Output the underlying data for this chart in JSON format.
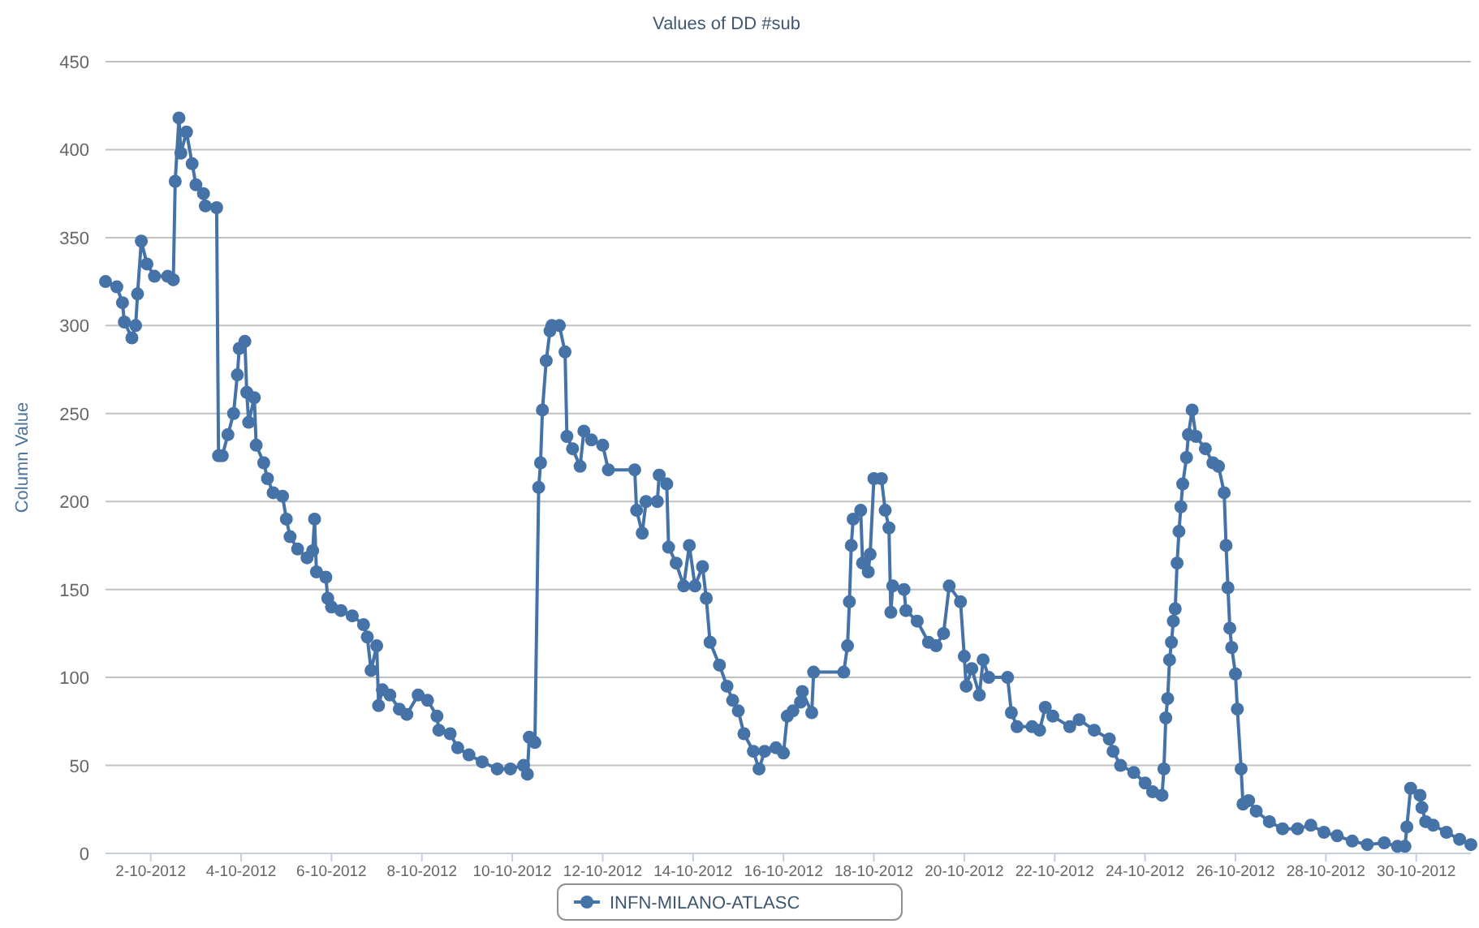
{
  "chart_data": {
    "type": "line",
    "title": "Values of DD #sub",
    "ylabel": "Column Value",
    "x": [
      "2012-10-01T00:00",
      "2012-10-01T06:00",
      "2012-10-01T09:00",
      "2012-10-01T10:00",
      "2012-10-01T14:00",
      "2012-10-01T16:00",
      "2012-10-01T17:00",
      "2012-10-01T19:00",
      "2012-10-01T22:00",
      "2012-10-02T02:00",
      "2012-10-02T09:00",
      "2012-10-02T12:00",
      "2012-10-02T13:00",
      "2012-10-02T15:00",
      "2012-10-02T16:00",
      "2012-10-02T19:00",
      "2012-10-02T22:00",
      "2012-10-03T00:00",
      "2012-10-03T04:00",
      "2012-10-03T05:00",
      "2012-10-03T11:00",
      "2012-10-03T12:00",
      "2012-10-03T14:00",
      "2012-10-03T17:00",
      "2012-10-03T20:00",
      "2012-10-03T22:00",
      "2012-10-03T23:00",
      "2012-10-04T02:00",
      "2012-10-04T03:00",
      "2012-10-04T04:00",
      "2012-10-04T07:00",
      "2012-10-04T08:00",
      "2012-10-04T12:00",
      "2012-10-04T14:00",
      "2012-10-04T17:00",
      "2012-10-04T22:00",
      "2012-10-05T00:00",
      "2012-10-05T02:00",
      "2012-10-05T06:00",
      "2012-10-05T11:00",
      "2012-10-05T14:00",
      "2012-10-05T15:00",
      "2012-10-05T16:00",
      "2012-10-05T21:00",
      "2012-10-05T22:00",
      "2012-10-06T00:00",
      "2012-10-06T05:00",
      "2012-10-06T11:00",
      "2012-10-06T17:00",
      "2012-10-06T19:00",
      "2012-10-06T21:00",
      "2012-10-07T00:00",
      "2012-10-07T01:00",
      "2012-10-07T03:00",
      "2012-10-07T07:00",
      "2012-10-07T12:00",
      "2012-10-07T16:00",
      "2012-10-07T22:00",
      "2012-10-08T03:00",
      "2012-10-08T08:00",
      "2012-10-08T09:00",
      "2012-10-08T15:00",
      "2012-10-08T19:00",
      "2012-10-09T01:00",
      "2012-10-09T08:00",
      "2012-10-09T16:00",
      "2012-10-09T23:00",
      "2012-10-10T06:00",
      "2012-10-10T08:00",
      "2012-10-10T09:00",
      "2012-10-10T12:00",
      "2012-10-10T14:00",
      "2012-10-10T15:00",
      "2012-10-10T16:00",
      "2012-10-10T18:00",
      "2012-10-10T20:00",
      "2012-10-10T21:00",
      "2012-10-11T01:00",
      "2012-10-11T04:00",
      "2012-10-11T05:00",
      "2012-10-11T08:00",
      "2012-10-11T12:00",
      "2012-10-11T14:00",
      "2012-10-11T18:00",
      "2012-10-12T00:00",
      "2012-10-12T03:00",
      "2012-10-12T17:00",
      "2012-10-12T18:00",
      "2012-10-12T21:00",
      "2012-10-12T23:00",
      "2012-10-13T05:00",
      "2012-10-13T06:00",
      "2012-10-13T10:00",
      "2012-10-13T11:00",
      "2012-10-13T15:00",
      "2012-10-13T19:00",
      "2012-10-13T22:00",
      "2012-10-14T01:00",
      "2012-10-14T05:00",
      "2012-10-14T07:00",
      "2012-10-14T09:00",
      "2012-10-14T14:00",
      "2012-10-14T18:00",
      "2012-10-14T21:00",
      "2012-10-15T00:00",
      "2012-10-15T03:00",
      "2012-10-15T08:00",
      "2012-10-15T11:00",
      "2012-10-15T14:00",
      "2012-10-15T20:00",
      "2012-10-16T00:00",
      "2012-10-16T02:00",
      "2012-10-16T05:00",
      "2012-10-16T09:00",
      "2012-10-16T10:00",
      "2012-10-16T15:00",
      "2012-10-16T16:00",
      "2012-10-17T08:00",
      "2012-10-17T10:00",
      "2012-10-17T11:00",
      "2012-10-17T12:00",
      "2012-10-17T13:00",
      "2012-10-17T17:00",
      "2012-10-17T18:00",
      "2012-10-17T21:00",
      "2012-10-17T22:00",
      "2012-10-18T00:00",
      "2012-10-18T04:00",
      "2012-10-18T06:00",
      "2012-10-18T08:00",
      "2012-10-18T09:00",
      "2012-10-18T10:00",
      "2012-10-18T16:00",
      "2012-10-18T17:00",
      "2012-10-18T23:00",
      "2012-10-19T05:00",
      "2012-10-19T09:00",
      "2012-10-19T13:00",
      "2012-10-19T16:00",
      "2012-10-19T22:00",
      "2012-10-20T00:00",
      "2012-10-20T01:00",
      "2012-10-20T04:00",
      "2012-10-20T08:00",
      "2012-10-20T10:00",
      "2012-10-20T13:00",
      "2012-10-20T23:00",
      "2012-10-21T01:00",
      "2012-10-21T04:00",
      "2012-10-21T12:00",
      "2012-10-21T16:00",
      "2012-10-21T19:00",
      "2012-10-21T23:00",
      "2012-10-22T08:00",
      "2012-10-22T13:00",
      "2012-10-22T21:00",
      "2012-10-23T05:00",
      "2012-10-23T07:00",
      "2012-10-23T11:00",
      "2012-10-23T18:00",
      "2012-10-24T00:00",
      "2012-10-24T04:00",
      "2012-10-24T09:00",
      "2012-10-24T10:00",
      "2012-10-24T11:00",
      "2012-10-24T12:00",
      "2012-10-24T13:00",
      "2012-10-24T14:00",
      "2012-10-24T15:00",
      "2012-10-24T16:00",
      "2012-10-24T17:00",
      "2012-10-24T18:00",
      "2012-10-24T19:00",
      "2012-10-24T20:00",
      "2012-10-24T22:00",
      "2012-10-24T23:00",
      "2012-10-25T01:00",
      "2012-10-25T03:00",
      "2012-10-25T08:00",
      "2012-10-25T12:00",
      "2012-10-25T15:00",
      "2012-10-25T18:00",
      "2012-10-25T19:00",
      "2012-10-25T20:00",
      "2012-10-25T21:00",
      "2012-10-25T22:00",
      "2012-10-26T00:00",
      "2012-10-26T01:00",
      "2012-10-26T03:00",
      "2012-10-26T04:00",
      "2012-10-26T07:00",
      "2012-10-26T11:00",
      "2012-10-26T18:00",
      "2012-10-27T01:00",
      "2012-10-27T09:00",
      "2012-10-27T16:00",
      "2012-10-27T23:00",
      "2012-10-28T06:00",
      "2012-10-28T14:00",
      "2012-10-28T22:00",
      "2012-10-29T07:00",
      "2012-10-29T14:00",
      "2012-10-29T18:00",
      "2012-10-29T19:00",
      "2012-10-29T21:00",
      "2012-10-30T02:00",
      "2012-10-30T03:00",
      "2012-10-30T05:00",
      "2012-10-30T09:00",
      "2012-10-30T16:00",
      "2012-10-30T23:00",
      "2012-10-31T05:00"
    ],
    "series": [
      {
        "name": "INFN-MILANO-ATLASC",
        "color": "#4572a7",
        "values": [
          325,
          322,
          313,
          302,
          293,
          300,
          318,
          348,
          335,
          328,
          328,
          326,
          382,
          418,
          398,
          410,
          392,
          380,
          375,
          368,
          367,
          226,
          226,
          238,
          250,
          272,
          287,
          291,
          262,
          245,
          259,
          232,
          222,
          213,
          205,
          203,
          190,
          180,
          173,
          168,
          172,
          190,
          160,
          157,
          145,
          140,
          138,
          135,
          130,
          123,
          104,
          118,
          84,
          93,
          90,
          82,
          79,
          90,
          87,
          78,
          70,
          68,
          60,
          56,
          52,
          48,
          48,
          50,
          45,
          66,
          63,
          208,
          222,
          252,
          280,
          297,
          300,
          300,
          285,
          237,
          230,
          220,
          240,
          235,
          232,
          218,
          218,
          195,
          182,
          200,
          200,
          215,
          210,
          174,
          165,
          152,
          175,
          152,
          163,
          145,
          120,
          107,
          95,
          87,
          81,
          68,
          58,
          48,
          58,
          60,
          57,
          78,
          81,
          86,
          92,
          80,
          103,
          103,
          118,
          143,
          175,
          190,
          195,
          165,
          160,
          170,
          213,
          213,
          195,
          185,
          137,
          152,
          150,
          138,
          132,
          120,
          118,
          125,
          152,
          143,
          112,
          95,
          105,
          90,
          110,
          100,
          100,
          80,
          72,
          72,
          70,
          83,
          78,
          72,
          76,
          70,
          65,
          58,
          50,
          46,
          40,
          35,
          33,
          48,
          77,
          88,
          110,
          120,
          132,
          139,
          165,
          183,
          197,
          210,
          225,
          238,
          252,
          237,
          230,
          222,
          220,
          205,
          175,
          151,
          128,
          117,
          102,
          82,
          48,
          28,
          30,
          24,
          18,
          14,
          14,
          16,
          12,
          10,
          7,
          5,
          6,
          4,
          4,
          15,
          37,
          33,
          26,
          18,
          16,
          12,
          8,
          5
        ]
      }
    ],
    "xlim": [
      "2012-10-01T00:00",
      "2012-10-31T05:00"
    ],
    "xticks": [
      {
        "value": "2012-10-02",
        "label": "2-10-2012"
      },
      {
        "value": "2012-10-04",
        "label": "4-10-2012"
      },
      {
        "value": "2012-10-06",
        "label": "6-10-2012"
      },
      {
        "value": "2012-10-08",
        "label": "8-10-2012"
      },
      {
        "value": "2012-10-10",
        "label": "10-10-2012"
      },
      {
        "value": "2012-10-12",
        "label": "12-10-2012"
      },
      {
        "value": "2012-10-14",
        "label": "14-10-2012"
      },
      {
        "value": "2012-10-16",
        "label": "16-10-2012"
      },
      {
        "value": "2012-10-18",
        "label": "18-10-2012"
      },
      {
        "value": "2012-10-20",
        "label": "20-10-2012"
      },
      {
        "value": "2012-10-22",
        "label": "22-10-2012"
      },
      {
        "value": "2012-10-24",
        "label": "24-10-2012"
      },
      {
        "value": "2012-10-26",
        "label": "26-10-2012"
      },
      {
        "value": "2012-10-28",
        "label": "28-10-2012"
      },
      {
        "value": "2012-10-30",
        "label": "30-10-2012"
      }
    ],
    "ylim": [
      0,
      450
    ],
    "yticks": [
      0,
      50,
      100,
      150,
      200,
      250,
      300,
      350,
      400,
      450
    ],
    "grid": "y",
    "legend": "bottom",
    "marker": "circle",
    "line_style": "solid"
  }
}
